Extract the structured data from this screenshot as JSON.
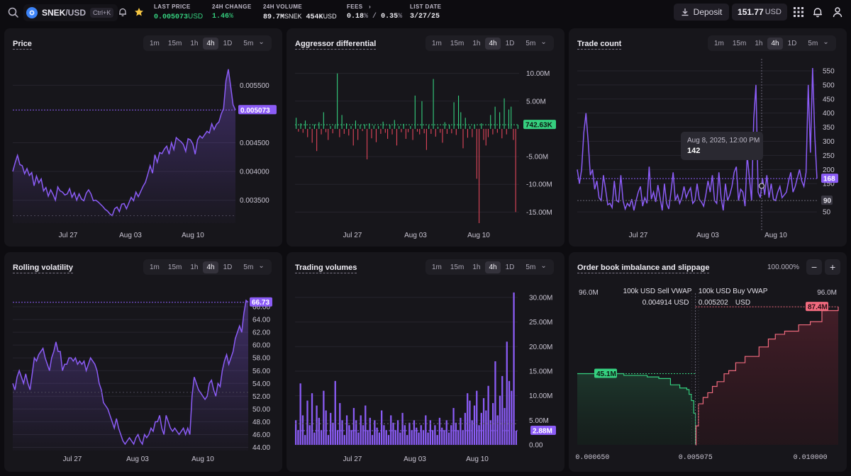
{
  "header": {
    "pair_base": "SNEK",
    "pair_quote": "/USD",
    "shortcut": "Ctrl+K",
    "last_price_label": "LAST PRICE",
    "last_price_value": "0.005073",
    "last_price_unit": "USD",
    "change_label": "24H CHANGE",
    "change_value": "1.46",
    "change_unit": "%",
    "volume_label": "24H VOLUME",
    "volume_base_value": "89.7M",
    "volume_base_unit": "SNEK",
    "volume_quote_value": "454K",
    "volume_quote_unit": "USD",
    "fees_label": "FEES",
    "fees_maker": "0.18",
    "fees_taker": "0.35",
    "fees_pct": "%",
    "fees_sep": "/",
    "list_date_label": "LIST DATE",
    "list_date_value": "3/27/25",
    "deposit_label": "Deposit",
    "balance_value": "151.77",
    "balance_unit": "USD"
  },
  "colors": {
    "accent": "#8b5cf6",
    "up": "#35d07f",
    "down": "#e0455a",
    "bg": "#0d0c10",
    "panel": "#17161b"
  },
  "timeframes": [
    "1m",
    "15m",
    "1h",
    "4h",
    "1D"
  ],
  "timeframe_active": "4h",
  "timeframe_select": "5m",
  "panels": {
    "price": {
      "title": "Price",
      "current": "0.005073",
      "x_labels": [
        "Jul 27",
        "Aug 03",
        "Aug 10"
      ],
      "y_labels": [
        "0.005500",
        "0.004500",
        "0.004000",
        "0.003500"
      ]
    },
    "aggressor": {
      "title": "Aggressor differential",
      "current": "742.63K",
      "x_labels": [
        "Jul 27",
        "Aug 03",
        "Aug 10"
      ],
      "y_labels": [
        "10.00M",
        "5.00M",
        "-5.00M",
        "-10.00M",
        "-15.00M"
      ]
    },
    "trades": {
      "title": "Trade count",
      "current": "168",
      "crosshair_value": "90",
      "tooltip_date": "Aug 8, 2025, 12:00 PM",
      "tooltip_value": "142",
      "x_labels": [
        "Jul 27",
        "Aug 03",
        "Aug 10"
      ],
      "y_labels": [
        "550",
        "500",
        "450",
        "400",
        "350",
        "300",
        "250",
        "200",
        "150",
        "50"
      ]
    },
    "volatility": {
      "title": "Rolling volatility",
      "current": "66.73",
      "x_labels": [
        "Jul 27",
        "Aug 03",
        "Aug 10"
      ],
      "y_labels": [
        "66.00",
        "64.00",
        "62.00",
        "60.00",
        "58.00",
        "56.00",
        "54.00",
        "52.00",
        "50.00",
        "48.00",
        "46.00",
        "44.00"
      ]
    },
    "volumes": {
      "title": "Trading volumes",
      "current": "2.88M",
      "x_labels": [
        "Jul 27",
        "Aug 03",
        "Aug 10"
      ],
      "y_labels": [
        "30.00M",
        "25.00M",
        "20.00M",
        "15.00M",
        "10.00M",
        "5.00M",
        "0.00"
      ]
    },
    "orderbook": {
      "title": "Order book imbalance and slippage",
      "zoom": "100.000%",
      "zoom_out": "−",
      "zoom_in": "+",
      "left_max": "96.0M",
      "right_max": "96.0M",
      "sell_label": "100k USD Sell VWAP",
      "buy_label": "100k USD Buy VWAP",
      "sell_price": "0.004914",
      "sell_unit": "USD",
      "buy_price": "0.005202",
      "buy_unit": "USD",
      "bid_badge": "45.1M",
      "ask_badge": "87.4M",
      "x_labels": [
        "0.000650",
        "0.005075",
        "0.010000"
      ]
    }
  },
  "chart_data": [
    {
      "type": "line",
      "title": "Price",
      "ylim": [
        0.0031,
        0.0059
      ],
      "x_ticks": [
        "Jul 27",
        "Aug 03",
        "Aug 10"
      ],
      "values": [
        0.004,
        0.00415,
        0.00428,
        0.00412,
        0.0041,
        0.00396,
        0.00405,
        0.00393,
        0.00398,
        0.00375,
        0.00392,
        0.0038,
        0.00387,
        0.00366,
        0.00372,
        0.00357,
        0.00368,
        0.0036,
        0.0035,
        0.00373,
        0.00366,
        0.00364,
        0.00359,
        0.00361,
        0.0037,
        0.00355,
        0.00363,
        0.0035,
        0.00361,
        0.00352,
        0.00349,
        0.00362,
        0.00368,
        0.00361,
        0.00349,
        0.0035,
        0.00347,
        0.00343,
        0.00339,
        0.00334,
        0.00331,
        0.00326,
        0.00323,
        0.00335,
        0.00338,
        0.0033,
        0.00343,
        0.00344,
        0.00335,
        0.00345,
        0.00355,
        0.00349,
        0.00364,
        0.00356,
        0.00365,
        0.00374,
        0.00381,
        0.00395,
        0.0041,
        0.00397,
        0.00429,
        0.00416,
        0.00433,
        0.00431,
        0.00439,
        0.00444,
        0.0043,
        0.0045,
        0.00438,
        0.00459,
        0.00455,
        0.00452,
        0.00447,
        0.00435,
        0.00457,
        0.00455,
        0.00448,
        0.0043,
        0.00455,
        0.00462,
        0.00458,
        0.00464,
        0.0047,
        0.00467,
        0.00483,
        0.00473,
        0.00482,
        0.00486,
        0.005,
        0.0051,
        0.00558,
        0.00578,
        0.00548,
        0.00516,
        0.00507
      ]
    },
    {
      "type": "bar",
      "title": "Aggressor differential",
      "ylim": [
        -17000000,
        12000000
      ],
      "x_ticks": [
        "Jul 27",
        "Aug 03",
        "Aug 10"
      ],
      "values": [
        2000000,
        -500000,
        1000000,
        -700000,
        1500000,
        -1500000,
        400000,
        -2500000,
        800000,
        -4000000,
        1200000,
        -1000000,
        3000000,
        -600000,
        -2000000,
        500000,
        -800000,
        600000,
        10000000,
        -1500000,
        2500000,
        -900000,
        1000000,
        -1200000,
        500000,
        -3000000,
        1500000,
        -2000000,
        700000,
        -400000,
        800000,
        -5500000,
        1000000,
        -1700000,
        600000,
        -2400000,
        500000,
        -900000,
        1300000,
        -700000,
        -1800000,
        700000,
        -1000000,
        1600000,
        -3000000,
        500000,
        -600000,
        900000,
        -1800000,
        -600000,
        500000,
        -2000000,
        6000000,
        -500000,
        -1000000,
        5000000,
        -800000,
        -3800000,
        600000,
        -900000,
        9000000,
        -1400000,
        400000,
        -700000,
        -2500000,
        1200000,
        -900000,
        700000,
        -800000,
        4800000,
        -1100000,
        6000000,
        3000000,
        -3500000,
        2000000,
        -1600000,
        500000,
        -1500000,
        700000,
        -9000000,
        -17000000,
        1000000,
        -2000000,
        -3000000,
        -1500000,
        2500000,
        -1000000,
        4000000,
        -700000,
        3000000,
        -1700000,
        5500000,
        -1000000,
        3500000,
        4000000,
        -2000000,
        -15000000,
        742630
      ]
    },
    {
      "type": "line",
      "title": "Trade count",
      "ylim": [
        10,
        580
      ],
      "x_ticks": [
        "Jul 27",
        "Aug 03",
        "Aug 10"
      ],
      "values": [
        200,
        150,
        200,
        330,
        400,
        300,
        180,
        200,
        130,
        160,
        100,
        90,
        180,
        130,
        75,
        80,
        65,
        160,
        90,
        85,
        180,
        90,
        60,
        80,
        70,
        95,
        55,
        90,
        120,
        140,
        70,
        100,
        80,
        210,
        95,
        120,
        85,
        145,
        100,
        55,
        150,
        80,
        60,
        120,
        190,
        90,
        110,
        80,
        100,
        140,
        100,
        120,
        135,
        80,
        90,
        150,
        95,
        85,
        70,
        110,
        160,
        120,
        180,
        90,
        80,
        190,
        100,
        55,
        150,
        90,
        110,
        140,
        190,
        210,
        90,
        130,
        120,
        70,
        250,
        170,
        90,
        380,
        500,
        120,
        100,
        170,
        110,
        180,
        100,
        150,
        95,
        90,
        120,
        140,
        100,
        110,
        120,
        160,
        190,
        120,
        140,
        170,
        200,
        160,
        140,
        190,
        500,
        260,
        560,
        320,
        168
      ]
    },
    {
      "type": "line",
      "title": "Rolling volatility",
      "ylim": [
        43.5,
        69
      ],
      "x_ticks": [
        "Jul 27",
        "Aug 03",
        "Aug 10"
      ],
      "values": [
        54,
        53,
        55,
        56,
        55,
        54,
        55.5,
        54,
        53,
        55.5,
        58,
        57.5,
        58.5,
        59,
        59.5,
        58,
        57,
        56,
        58,
        59,
        60.5,
        59,
        59,
        56,
        57,
        57,
        58,
        58,
        57.5,
        58,
        57,
        57.5,
        57,
        57.5,
        56,
        57,
        58,
        57.5,
        57,
        56,
        54,
        53,
        51,
        50.5,
        50,
        49,
        48,
        47,
        48.5,
        47,
        46,
        45,
        44.5,
        45,
        45.5,
        45,
        44.5,
        45.5,
        46,
        45,
        44.5,
        46,
        45.5,
        46,
        47,
        46.5,
        48,
        48,
        49,
        47,
        46,
        49,
        48,
        47,
        46.5,
        47,
        46.5,
        46,
        46.5,
        47,
        46,
        47,
        46,
        52,
        55,
        54,
        53,
        52.5,
        52,
        51.5,
        52,
        54,
        54.5,
        53,
        52,
        54,
        53.5,
        56,
        57.5,
        58.5,
        57,
        58,
        59,
        61,
        62,
        63,
        62,
        65,
        67,
        66.7
      ]
    },
    {
      "type": "bar",
      "title": "Trading volumes",
      "ylim": [
        0,
        32000000
      ],
      "x_ticks": [
        "Jul 27",
        "Aug 03",
        "Aug 10"
      ],
      "values": [
        5000000,
        3000000,
        12500000,
        6000000,
        2000000,
        9000000,
        4000000,
        10500000,
        2500000,
        8000000,
        5500000,
        3000000,
        11000000,
        7000000,
        2000000,
        6500000,
        4500000,
        13000000,
        3000000,
        8500000,
        5000000,
        2000000,
        6000000,
        4000000,
        3000000,
        7500000,
        5000000,
        2500000,
        6000000,
        4000000,
        8000000,
        3000000,
        5500000,
        2000000,
        5000000,
        3500000,
        2500000,
        7000000,
        4000000,
        3000000,
        2000000,
        6000000,
        4500000,
        3000000,
        5000000,
        2500000,
        6500000,
        4000000,
        2000000,
        4500000,
        3000000,
        5000000,
        3500000,
        2500000,
        4000000,
        3000000,
        6000000,
        2500000,
        5000000,
        3000000,
        4000000,
        2000000,
        5500000,
        3500000,
        3000000,
        5000000,
        2500000,
        4000000,
        7500000,
        4500000,
        3000000,
        5500000,
        3000000,
        6500000,
        10500000,
        9000000,
        5000000,
        8000000,
        11000000,
        4000000,
        6500000,
        9500000,
        7000000,
        12000000,
        5000000,
        8500000,
        17000000,
        6000000,
        10000000,
        14000000,
        7500000,
        21000000,
        13000000,
        11000000,
        31000000,
        2880000
      ]
    },
    {
      "type": "area",
      "title": "Order book imbalance and slippage",
      "xlim": [
        0.0,
        0.0112
      ],
      "x_ticks": [
        "0.000650",
        "0.005075",
        "0.010000"
      ],
      "ylim": [
        0,
        96000000
      ],
      "bids": [
        [
          0.0,
          45100000
        ],
        [
          0.0015,
          45100000
        ],
        [
          0.002,
          44000000
        ],
        [
          0.003,
          43000000
        ],
        [
          0.0035,
          42000000
        ],
        [
          0.004,
          38000000
        ],
        [
          0.0044,
          36000000
        ],
        [
          0.0047,
          35000000
        ],
        [
          0.0048,
          32000000
        ],
        [
          0.0049,
          28000000
        ],
        [
          0.005,
          20000000
        ],
        [
          0.00507,
          0
        ]
      ],
      "asks": [
        [
          0.00508,
          0
        ],
        [
          0.0051,
          12000000
        ],
        [
          0.0052,
          26000000
        ],
        [
          0.0054,
          30000000
        ],
        [
          0.0056,
          33000000
        ],
        [
          0.0058,
          37000000
        ],
        [
          0.006,
          40000000
        ],
        [
          0.0063,
          45000000
        ],
        [
          0.0065,
          47000000
        ],
        [
          0.0068,
          52000000
        ],
        [
          0.0072,
          56000000
        ],
        [
          0.0078,
          62000000
        ],
        [
          0.0082,
          67000000
        ],
        [
          0.0085,
          70000000
        ],
        [
          0.0089,
          72000000
        ],
        [
          0.0095,
          76000000
        ],
        [
          0.01,
          78000000
        ],
        [
          0.0105,
          85000000
        ],
        [
          0.0112,
          87400000
        ]
      ]
    }
  ]
}
